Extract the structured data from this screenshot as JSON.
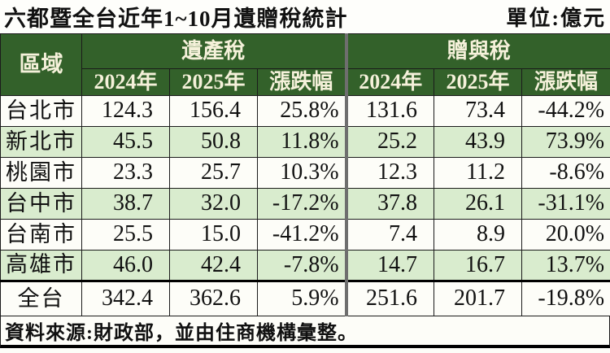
{
  "title": "六都暨全台近年1~10月遺贈稅統計",
  "unit_label": "單位:億元",
  "table": {
    "region_header": "區域",
    "group_estate": "遺產稅",
    "group_gift": "贈與稅",
    "sub_2024": "2024年",
    "sub_2025": "2025年",
    "sub_change": "漲跌幅",
    "rows": [
      {
        "region": "台北市",
        "e2024": "124.3",
        "e2025": "156.4",
        "echg": "25.8%",
        "g2024": "131.6",
        "g2025": "73.4",
        "gchg": "-44.2%"
      },
      {
        "region": "新北市",
        "e2024": "45.5",
        "e2025": "50.8",
        "echg": "11.8%",
        "g2024": "25.2",
        "g2025": "43.9",
        "gchg": "73.9%"
      },
      {
        "region": "桃園市",
        "e2024": "23.3",
        "e2025": "25.7",
        "echg": "10.3%",
        "g2024": "12.3",
        "g2025": "11.2",
        "gchg": "-8.6%"
      },
      {
        "region": "台中市",
        "e2024": "38.7",
        "e2025": "32.0",
        "echg": "-17.2%",
        "g2024": "37.8",
        "g2025": "26.1",
        "gchg": "-31.1%"
      },
      {
        "region": "台南市",
        "e2024": "25.5",
        "e2025": "15.0",
        "echg": "-41.2%",
        "g2024": "7.4",
        "g2025": "8.9",
        "gchg": "20.0%"
      },
      {
        "region": "高雄市",
        "e2024": "46.0",
        "e2025": "42.4",
        "echg": "-7.8%",
        "g2024": "14.7",
        "g2025": "16.7",
        "gchg": "13.7%"
      },
      {
        "region": "全台",
        "e2024": "342.4",
        "e2025": "362.6",
        "echg": "5.9%",
        "g2024": "251.6",
        "g2025": "201.7",
        "gchg": "-19.8%"
      }
    ]
  },
  "footer_note": "資料來源:財政部，並由住商機構彙整。",
  "colors": {
    "header_green": "#33612a",
    "header_text": "#f5f1da",
    "zebra_green": "#d9ecce",
    "row_white": "#fdfdf8",
    "divider_gray": "#6e6e6e",
    "border_black": "#1b1b1b"
  },
  "chart_data": {
    "type": "table",
    "title": "六都暨全台近年1~10月遺贈稅統計",
    "unit": "億元",
    "column_groups": [
      "遺產稅",
      "贈與稅"
    ],
    "columns": [
      "區域",
      "遺產稅 2024年",
      "遺產稅 2025年",
      "遺產稅 漲跌幅(%)",
      "贈與稅 2024年",
      "贈與稅 2025年",
      "贈與稅 漲跌幅(%)"
    ],
    "rows": [
      [
        "台北市",
        124.3,
        156.4,
        25.8,
        131.6,
        73.4,
        -44.2
      ],
      [
        "新北市",
        45.5,
        50.8,
        11.8,
        25.2,
        43.9,
        73.9
      ],
      [
        "桃園市",
        23.3,
        25.7,
        10.3,
        12.3,
        11.2,
        -8.6
      ],
      [
        "台中市",
        38.7,
        32.0,
        -17.2,
        37.8,
        26.1,
        -31.1
      ],
      [
        "台南市",
        25.5,
        15.0,
        -41.2,
        7.4,
        8.9,
        20.0
      ],
      [
        "高雄市",
        46.0,
        42.4,
        -7.8,
        14.7,
        16.7,
        13.7
      ],
      [
        "全台",
        342.4,
        362.6,
        5.9,
        251.6,
        201.7,
        -19.8
      ]
    ],
    "source_note": "資料來源:財政部，並由住商機構彙整。"
  }
}
